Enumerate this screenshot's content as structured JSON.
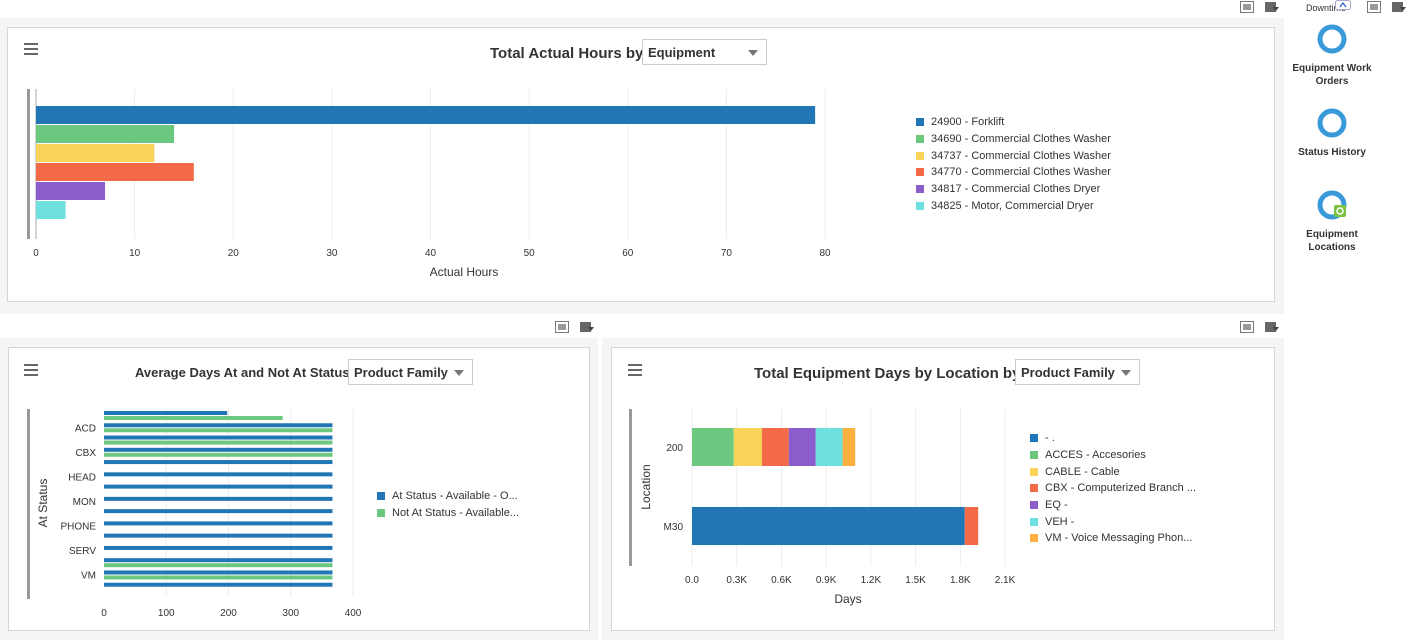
{
  "side": {
    "top_label": "Downtime",
    "items": [
      {
        "label": "Equipment Work Orders",
        "icon": "work-orders-icon"
      },
      {
        "label": "Status History",
        "icon": "status-history-icon"
      },
      {
        "label": "Equipment Locations",
        "icon": "locations-icon"
      }
    ]
  },
  "charts": {
    "hours": {
      "title": "Total Actual Hours by",
      "dropdown": "Equipment"
    },
    "avgdays": {
      "title": "Average Days At and Not At Status by",
      "dropdown": "Product Family"
    },
    "location": {
      "title": "Total Equipment Days by Location by",
      "dropdown": "Product Family"
    }
  },
  "chart_data": [
    {
      "type": "bar",
      "orientation": "horizontal",
      "title": "Total Actual Hours by Equipment",
      "xlabel": "Actual Hours",
      "ylabel": "",
      "xlim": [
        0,
        80
      ],
      "xticks": [
        "0",
        "10",
        "20",
        "30",
        "40",
        "50",
        "60",
        "70",
        "80"
      ],
      "legend_position": "right",
      "categories": [
        "24900 - Forklift",
        "34690 - Commercial Clothes Washer",
        "34737 - Commercial Clothes Washer",
        "34770 - Commercial Clothes Washer",
        "34817 - Commercial Clothes Dryer",
        "34825 - Motor, Commercial Dryer"
      ],
      "values": [
        79,
        14,
        12,
        16,
        7,
        3
      ],
      "colors": [
        "#2176b5",
        "#6cc77f",
        "#fad45a",
        "#f26a47",
        "#8a5ccc",
        "#6ee0e0"
      ]
    },
    {
      "type": "bar",
      "orientation": "horizontal",
      "title": "Average Days At and Not At Status by Product Family",
      "xlabel": "",
      "ylabel": "At Status",
      "xlim": [
        0,
        400
      ],
      "xticks": [
        "0",
        "100",
        "200",
        "300",
        "400"
      ],
      "legend_position": "right",
      "categories": [
        "",
        "ACD",
        "",
        "CBX",
        "",
        "HEAD",
        "",
        "MON",
        "",
        "PHONE",
        "",
        "SERV",
        "",
        "VM",
        ""
      ],
      "series": [
        {
          "name": "At Status - Available - O...",
          "color": "#2176b5",
          "values": [
            198,
            367,
            367,
            367,
            367,
            367,
            367,
            367,
            367,
            367,
            367,
            367,
            367,
            367,
            367
          ]
        },
        {
          "name": "Not At Status - Available...",
          "color": "#6cc77f",
          "values": [
            287,
            367,
            367,
            367,
            null,
            null,
            null,
            null,
            null,
            null,
            null,
            null,
            367,
            367,
            null
          ]
        }
      ]
    },
    {
      "type": "bar",
      "orientation": "horizontal",
      "stacked": true,
      "title": "Total Equipment Days by Location by Product Family",
      "xlabel": "Days",
      "ylabel": "Location",
      "xlim": [
        0,
        2100
      ],
      "xticks": [
        "0.0",
        "0.3K",
        "0.6K",
        "0.9K",
        "1.2K",
        "1.5K",
        "1.8K",
        "2.1K"
      ],
      "legend_position": "right",
      "categories": [
        "200",
        "M30"
      ],
      "series": [
        {
          "name": "- .",
          "color": "#2176b5",
          "values": [
            0,
            1830
          ]
        },
        {
          "name": "ACCES - Accesories",
          "color": "#6cc77f",
          "values": [
            280,
            0
          ]
        },
        {
          "name": "CABLE - Cable",
          "color": "#fad45a",
          "values": [
            190,
            0
          ]
        },
        {
          "name": "CBX - Computerized Branch ...",
          "color": "#f26a47",
          "values": [
            180,
            90
          ]
        },
        {
          "name": "EQ -",
          "color": "#8a5ccc",
          "values": [
            180,
            0
          ]
        },
        {
          "name": "VEH -",
          "color": "#6ee0e0",
          "values": [
            180,
            0
          ]
        },
        {
          "name": "VM - Voice Messaging Phon...",
          "color": "#fbb040",
          "values": [
            85,
            0
          ]
        }
      ]
    }
  ]
}
